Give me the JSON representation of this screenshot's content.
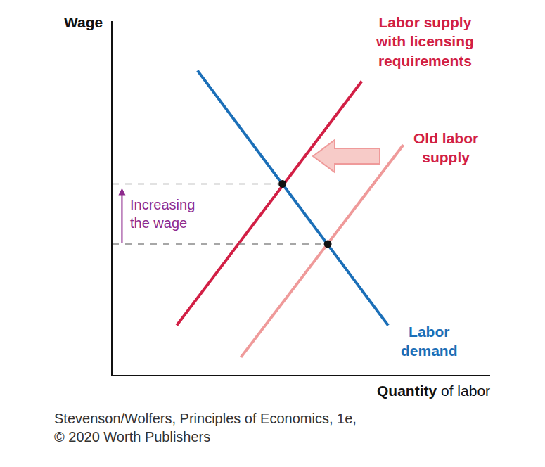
{
  "chart_data": {
    "type": "line",
    "x_label": "Quantity of labor",
    "y_label": "Wage",
    "xlim": [
      0,
      10
    ],
    "ylim": [
      0,
      10
    ],
    "xticks": [],
    "yticks": [],
    "tick_labels": false,
    "grid": false,
    "series": [
      {
        "name": "Labor demand",
        "color": "#1b6fb8",
        "x": [
          2.25,
          7.3
        ],
        "values": [
          8.6,
          1.4
        ]
      },
      {
        "name": "Labor supply with licensing requirements",
        "color": "#d21f45",
        "x": [
          1.7,
          6.6
        ],
        "values": [
          1.4,
          8.3
        ]
      },
      {
        "name": "Old labor supply",
        "color": "#ef9a9a",
        "x": [
          3.4,
          7.7
        ],
        "values": [
          0.5,
          6.5
        ]
      }
    ],
    "equilibria": [
      {
        "x": 4.5,
        "y": 5.4
      },
      {
        "x": 5.7,
        "y": 3.7
      }
    ],
    "annotation": "Increasing the wage",
    "source": "Stevenson/Wolfers, Principles of Economics, 1e, © 2020 Worth Publishers"
  }
}
